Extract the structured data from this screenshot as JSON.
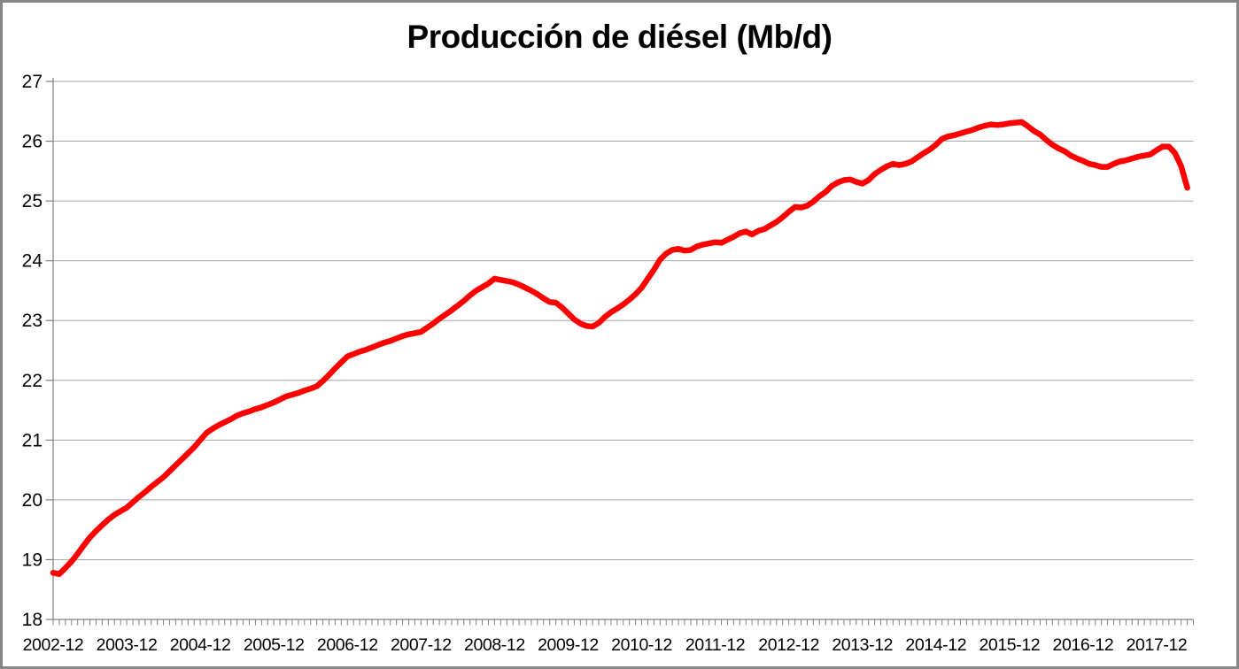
{
  "colors": {
    "line": "#fe0000",
    "gridline": "#a6a6a6",
    "axis": "#808080",
    "frame_border": "#878787",
    "background": "#ffffff",
    "text": "#000000"
  },
  "chart_data": {
    "type": "line",
    "title": "Producción de diésel (Mb/d)",
    "xlabel": "",
    "ylabel": "",
    "ylim": [
      18,
      27
    ],
    "y_ticks": [
      18,
      19,
      20,
      21,
      22,
      23,
      24,
      25,
      26,
      27
    ],
    "grid": "horizontal-only",
    "legend": "none",
    "x_start": "2002-12",
    "x_interval": "monthly",
    "x_count": 186,
    "x_tick_labels": [
      "2002-12",
      "2003-12",
      "2004-12",
      "2005-12",
      "2006-12",
      "2007-12",
      "2008-12",
      "2009-12",
      "2010-12",
      "2011-12",
      "2012-12",
      "2013-12",
      "2014-12",
      "2015-12",
      "2016-12",
      "2017-12"
    ],
    "series": [
      {
        "name": "Producción de diésel (Mb/d)",
        "color": "#fe0000",
        "values": [
          18.78,
          18.76,
          18.86,
          18.97,
          19.1,
          19.24,
          19.37,
          19.48,
          19.58,
          19.67,
          19.75,
          19.81,
          19.87,
          19.96,
          20.05,
          20.13,
          20.22,
          20.3,
          20.38,
          20.48,
          20.58,
          20.68,
          20.78,
          20.88,
          21.0,
          21.12,
          21.19,
          21.25,
          21.3,
          21.35,
          21.41,
          21.45,
          21.48,
          21.52,
          21.55,
          21.59,
          21.63,
          21.68,
          21.73,
          21.76,
          21.79,
          21.83,
          21.86,
          21.9,
          21.99,
          22.09,
          22.2,
          22.3,
          22.4,
          22.44,
          22.48,
          22.51,
          22.55,
          22.59,
          22.63,
          22.66,
          22.7,
          22.74,
          22.77,
          22.79,
          22.81,
          22.88,
          22.95,
          23.03,
          23.1,
          23.17,
          23.25,
          23.33,
          23.42,
          23.5,
          23.56,
          23.62,
          23.7,
          23.68,
          23.66,
          23.64,
          23.6,
          23.55,
          23.5,
          23.44,
          23.37,
          23.31,
          23.3,
          23.22,
          23.12,
          23.02,
          22.95,
          22.91,
          22.9,
          22.96,
          23.06,
          23.14,
          23.2,
          23.27,
          23.35,
          23.44,
          23.55,
          23.7,
          23.85,
          24.02,
          24.12,
          24.18,
          24.2,
          24.17,
          24.18,
          24.24,
          24.27,
          24.29,
          24.31,
          24.3,
          24.35,
          24.4,
          24.46,
          24.49,
          24.44,
          24.5,
          24.53,
          24.59,
          24.65,
          24.73,
          24.82,
          24.9,
          24.89,
          24.92,
          24.99,
          25.08,
          25.15,
          25.25,
          25.31,
          25.35,
          25.36,
          25.32,
          25.29,
          25.35,
          25.45,
          25.52,
          25.58,
          25.62,
          25.6,
          25.62,
          25.66,
          25.73,
          25.8,
          25.86,
          25.94,
          26.04,
          26.08,
          26.1,
          26.13,
          26.16,
          26.19,
          26.23,
          26.26,
          26.28,
          26.27,
          26.28,
          26.3,
          26.31,
          26.32,
          26.25,
          26.17,
          26.11,
          26.02,
          25.94,
          25.88,
          25.83,
          25.76,
          25.71,
          25.67,
          25.62,
          25.6,
          25.57,
          25.57,
          25.62,
          25.66,
          25.68,
          25.71,
          25.74,
          25.76,
          25.78,
          25.85,
          25.91,
          25.91,
          25.8,
          25.58,
          25.22
        ]
      }
    ]
  }
}
